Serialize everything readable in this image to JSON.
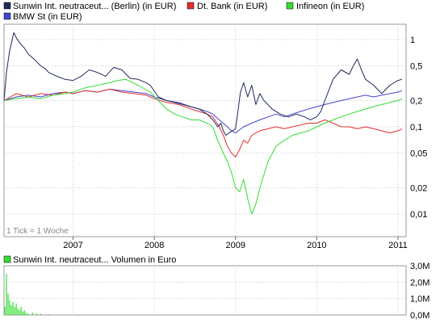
{
  "chart_data": [
    {
      "type": "line",
      "legend": [
        {
          "label": "Sunwin Int. neutraceut... (Berlin) (in EUR)",
          "color": "#1f2a5a"
        },
        {
          "label": "Dt. Bank (in EUR)",
          "color": "#e03030"
        },
        {
          "label": "Infineon (in EUR)",
          "color": "#33dd33"
        },
        {
          "label": "BMW St (in EUR)",
          "color": "#4444cc"
        }
      ],
      "note": "1 Tick = 1 Woche",
      "x_ticks": [
        "2007",
        "2008",
        "2009",
        "2010",
        "2011"
      ],
      "x_range": [
        2006.15,
        2011.1
      ],
      "y_scale": "log",
      "y_range": [
        0.0055,
        1.5
      ],
      "y_ticks": [
        {
          "value": 1,
          "label": "1"
        },
        {
          "value": 0.5,
          "label": "0,5"
        },
        {
          "value": 0.2,
          "label": "0,2"
        },
        {
          "value": 0.1,
          "label": "0,1"
        },
        {
          "value": 0.05,
          "label": "0,05"
        },
        {
          "value": 0.02,
          "label": "0,02"
        },
        {
          "value": 0.01,
          "label": "0,01"
        }
      ],
      "series": [
        {
          "name": "Sunwin Int. neutraceut... (Berlin) (in EUR)",
          "color": "#1f2a5a",
          "x": [
            2006.15,
            2006.18,
            2006.22,
            2006.27,
            2006.3,
            2006.35,
            2006.4,
            2006.45,
            2006.5,
            2006.55,
            2006.6,
            2006.65,
            2006.7,
            2006.8,
            2006.9,
            2007.0,
            2007.1,
            2007.2,
            2007.3,
            2007.4,
            2007.5,
            2007.6,
            2007.7,
            2007.8,
            2007.9,
            2007.95,
            2008.05,
            2008.15,
            2008.25,
            2008.35,
            2008.45,
            2008.55,
            2008.65,
            2008.72,
            2008.78,
            2008.82,
            2008.85,
            2008.88,
            2008.92,
            2008.96,
            2009.0,
            2009.03,
            2009.06,
            2009.1,
            2009.15,
            2009.2,
            2009.25,
            2009.3,
            2009.35,
            2009.45,
            2009.55,
            2009.65,
            2009.75,
            2009.85,
            2009.92,
            2010.0,
            2010.05,
            2010.1,
            2010.2,
            2010.3,
            2010.4,
            2010.45,
            2010.5,
            2010.55,
            2010.6,
            2010.7,
            2010.8,
            2010.9,
            2011.0,
            2011.05
          ],
          "y": [
            0.2,
            0.42,
            0.75,
            1.2,
            1.05,
            0.9,
            0.8,
            0.68,
            0.62,
            0.56,
            0.5,
            0.47,
            0.42,
            0.38,
            0.35,
            0.34,
            0.38,
            0.45,
            0.42,
            0.38,
            0.48,
            0.45,
            0.36,
            0.35,
            0.32,
            0.3,
            0.22,
            0.2,
            0.19,
            0.18,
            0.17,
            0.16,
            0.14,
            0.12,
            0.1,
            0.11,
            0.09,
            0.08,
            0.085,
            0.09,
            0.095,
            0.15,
            0.25,
            0.32,
            0.22,
            0.3,
            0.18,
            0.24,
            0.2,
            0.16,
            0.14,
            0.13,
            0.14,
            0.13,
            0.12,
            0.13,
            0.15,
            0.2,
            0.35,
            0.45,
            0.4,
            0.5,
            0.6,
            0.45,
            0.35,
            0.3,
            0.24,
            0.3,
            0.34,
            0.35
          ]
        },
        {
          "name": "Dt. Bank (in EUR)",
          "color": "#e03030",
          "x": [
            2006.15,
            2006.3,
            2006.45,
            2006.6,
            2006.75,
            2006.9,
            2007.0,
            2007.15,
            2007.3,
            2007.45,
            2007.6,
            2007.75,
            2007.9,
            2008.0,
            2008.15,
            2008.3,
            2008.45,
            2008.55,
            2008.65,
            2008.72,
            2008.8,
            2008.85,
            2008.9,
            2008.95,
            2009.0,
            2009.05,
            2009.1,
            2009.15,
            2009.2,
            2009.3,
            2009.4,
            2009.5,
            2009.6,
            2009.7,
            2009.8,
            2009.9,
            2010.0,
            2010.1,
            2010.2,
            2010.3,
            2010.4,
            2010.5,
            2010.6,
            2010.7,
            2010.8,
            2010.9,
            2011.0,
            2011.05
          ],
          "y": [
            0.2,
            0.24,
            0.22,
            0.24,
            0.23,
            0.25,
            0.24,
            0.26,
            0.25,
            0.27,
            0.25,
            0.24,
            0.23,
            0.21,
            0.19,
            0.18,
            0.16,
            0.15,
            0.14,
            0.13,
            0.1,
            0.08,
            0.06,
            0.05,
            0.045,
            0.055,
            0.07,
            0.065,
            0.08,
            0.09,
            0.095,
            0.1,
            0.095,
            0.1,
            0.105,
            0.11,
            0.11,
            0.12,
            0.11,
            0.1,
            0.1,
            0.095,
            0.1,
            0.095,
            0.09,
            0.085,
            0.09,
            0.095
          ]
        },
        {
          "name": "Infineon (in EUR)",
          "color": "#33dd33",
          "x": [
            2006.15,
            2006.3,
            2006.45,
            2006.6,
            2006.75,
            2006.9,
            2007.0,
            2007.15,
            2007.3,
            2007.45,
            2007.55,
            2007.65,
            2007.8,
            2007.95,
            2008.05,
            2008.15,
            2008.25,
            2008.35,
            2008.45,
            2008.55,
            2008.65,
            2008.72,
            2008.78,
            2008.85,
            2008.9,
            2008.95,
            2009.0,
            2009.05,
            2009.1,
            2009.15,
            2009.2,
            2009.25,
            2009.3,
            2009.4,
            2009.5,
            2009.6,
            2009.7,
            2009.8,
            2009.9,
            2010.0,
            2010.1,
            2010.2,
            2010.3,
            2010.4,
            2010.5,
            2010.6,
            2010.7,
            2010.8,
            2010.9,
            2011.0,
            2011.05
          ],
          "y": [
            0.2,
            0.21,
            0.22,
            0.21,
            0.23,
            0.24,
            0.25,
            0.28,
            0.3,
            0.32,
            0.34,
            0.35,
            0.3,
            0.25,
            0.2,
            0.16,
            0.14,
            0.13,
            0.12,
            0.12,
            0.11,
            0.1,
            0.07,
            0.05,
            0.04,
            0.03,
            0.02,
            0.018,
            0.025,
            0.015,
            0.01,
            0.013,
            0.02,
            0.04,
            0.06,
            0.07,
            0.08,
            0.085,
            0.09,
            0.1,
            0.11,
            0.12,
            0.13,
            0.14,
            0.15,
            0.16,
            0.17,
            0.18,
            0.19,
            0.2,
            0.21
          ]
        },
        {
          "name": "BMW St (in EUR)",
          "color": "#4444cc",
          "x": [
            2006.15,
            2006.3,
            2006.45,
            2006.6,
            2006.75,
            2006.9,
            2007.0,
            2007.15,
            2007.3,
            2007.45,
            2007.6,
            2007.75,
            2007.9,
            2008.0,
            2008.15,
            2008.3,
            2008.45,
            2008.55,
            2008.65,
            2008.72,
            2008.8,
            2008.85,
            2008.9,
            2008.95,
            2009.0,
            2009.1,
            2009.2,
            2009.3,
            2009.4,
            2009.5,
            2009.6,
            2009.7,
            2009.8,
            2009.9,
            2010.0,
            2010.1,
            2010.2,
            2010.3,
            2010.4,
            2010.5,
            2010.6,
            2010.7,
            2010.8,
            2010.9,
            2011.0,
            2011.05
          ],
          "y": [
            0.2,
            0.22,
            0.23,
            0.22,
            0.24,
            0.25,
            0.24,
            0.26,
            0.25,
            0.27,
            0.26,
            0.25,
            0.24,
            0.22,
            0.2,
            0.19,
            0.17,
            0.16,
            0.15,
            0.14,
            0.12,
            0.11,
            0.1,
            0.09,
            0.085,
            0.1,
            0.11,
            0.12,
            0.13,
            0.14,
            0.13,
            0.14,
            0.15,
            0.16,
            0.17,
            0.18,
            0.19,
            0.2,
            0.21,
            0.22,
            0.23,
            0.22,
            0.23,
            0.24,
            0.25,
            0.26
          ]
        }
      ]
    },
    {
      "type": "bar",
      "legend": [
        {
          "label": "Sunwin Int. neutraceut... Volumen in Euro",
          "color": "#33dd33"
        }
      ],
      "y_range": [
        0,
        3.0
      ],
      "y_ticks": [
        {
          "value": 3.0,
          "label": "3,0M"
        },
        {
          "value": 2.0,
          "label": "2,0M"
        },
        {
          "value": 1.0,
          "label": "1,0M"
        },
        {
          "value": 0.0,
          "label": "0,0M"
        }
      ],
      "x": [
        2006.16,
        2006.18,
        2006.2,
        2006.22,
        2006.24,
        2006.26,
        2006.28,
        2006.3,
        2006.32,
        2006.34,
        2006.36,
        2006.38,
        2006.4,
        2006.42,
        2006.45,
        2006.5,
        2006.55,
        2006.6,
        2006.7
      ],
      "values": [
        0.5,
        2.5,
        1.3,
        0.9,
        0.6,
        0.8,
        0.5,
        0.7,
        0.4,
        0.3,
        0.5,
        0.2,
        0.3,
        0.15,
        0.1,
        0.15,
        0.1,
        0.08,
        0.05
      ]
    }
  ]
}
